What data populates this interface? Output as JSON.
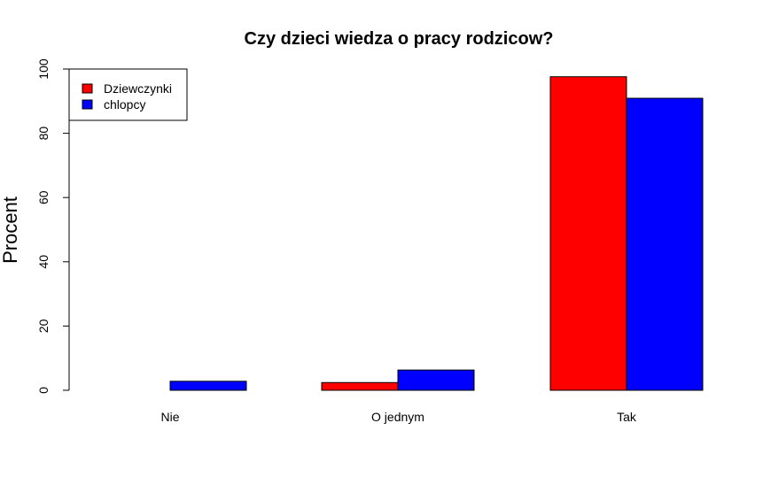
{
  "chart_data": {
    "type": "bar",
    "title": "Czy dzieci wiedza o pracy rodzicow?",
    "xlabel": "",
    "ylabel": "Procent",
    "categories": [
      "Nie",
      "O jednym",
      "Tak"
    ],
    "series": [
      {
        "name": "Dziewczynki",
        "color": "#ff0000",
        "values": [
          0,
          2.4,
          97.6
        ]
      },
      {
        "name": "chlopcy",
        "color": "#0000ff",
        "values": [
          2.8,
          6.3,
          90.9
        ]
      }
    ],
    "ylim": [
      0,
      100
    ],
    "yticks": [
      0,
      20,
      40,
      60,
      80,
      100
    ],
    "grid": false,
    "legend_position": "top-left"
  }
}
